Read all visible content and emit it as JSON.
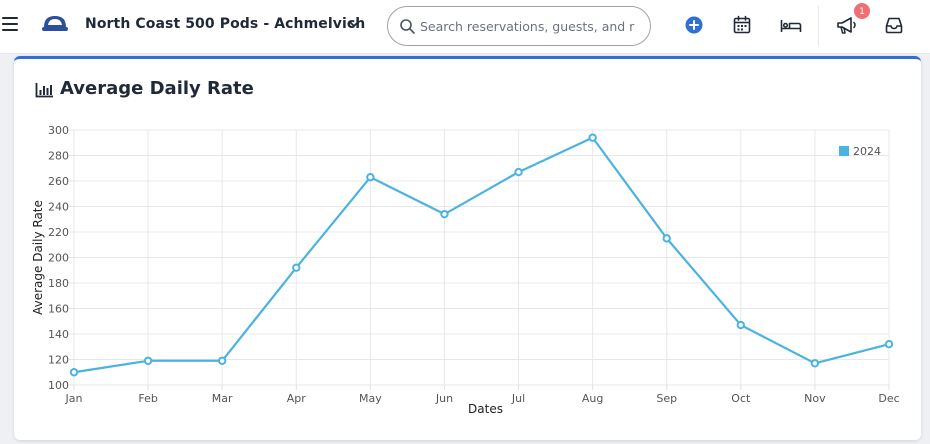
{
  "header": {
    "property_name": "North Coast 500 Pods - Achmelvich",
    "search_placeholder": "Search reservations, guests, and r",
    "notification_count": "1",
    "icons": [
      "menu-icon",
      "logo-icon",
      "chevron-down-icon",
      "search-icon",
      "add-circle-icon",
      "calendar-icon",
      "bed-icon",
      "megaphone-icon",
      "inbox-icon"
    ]
  },
  "colors": {
    "accent": "#2f6fd6",
    "series": "#4bb3e3",
    "badge": "#ef6f73"
  },
  "card": {
    "title": "Average Daily Rate",
    "icon": "bar-chart-icon"
  },
  "chart_data": {
    "type": "line",
    "title": "",
    "xlabel": "Dates",
    "ylabel": "Average Daily Rate",
    "categories": [
      "Jan",
      "Feb",
      "Mar",
      "Apr",
      "May",
      "Jun",
      "Jul",
      "Aug",
      "Sep",
      "Oct",
      "Nov",
      "Dec"
    ],
    "series": [
      {
        "name": "2024",
        "values": [
          110,
          119,
          119,
          192,
          263,
          234,
          267,
          294,
          215,
          147,
          117,
          132
        ]
      }
    ],
    "ylim": [
      100,
      300
    ],
    "yticks": [
      100,
      120,
      140,
      160,
      180,
      200,
      220,
      240,
      260,
      280,
      300
    ],
    "grid": true,
    "legend": "top-right"
  }
}
